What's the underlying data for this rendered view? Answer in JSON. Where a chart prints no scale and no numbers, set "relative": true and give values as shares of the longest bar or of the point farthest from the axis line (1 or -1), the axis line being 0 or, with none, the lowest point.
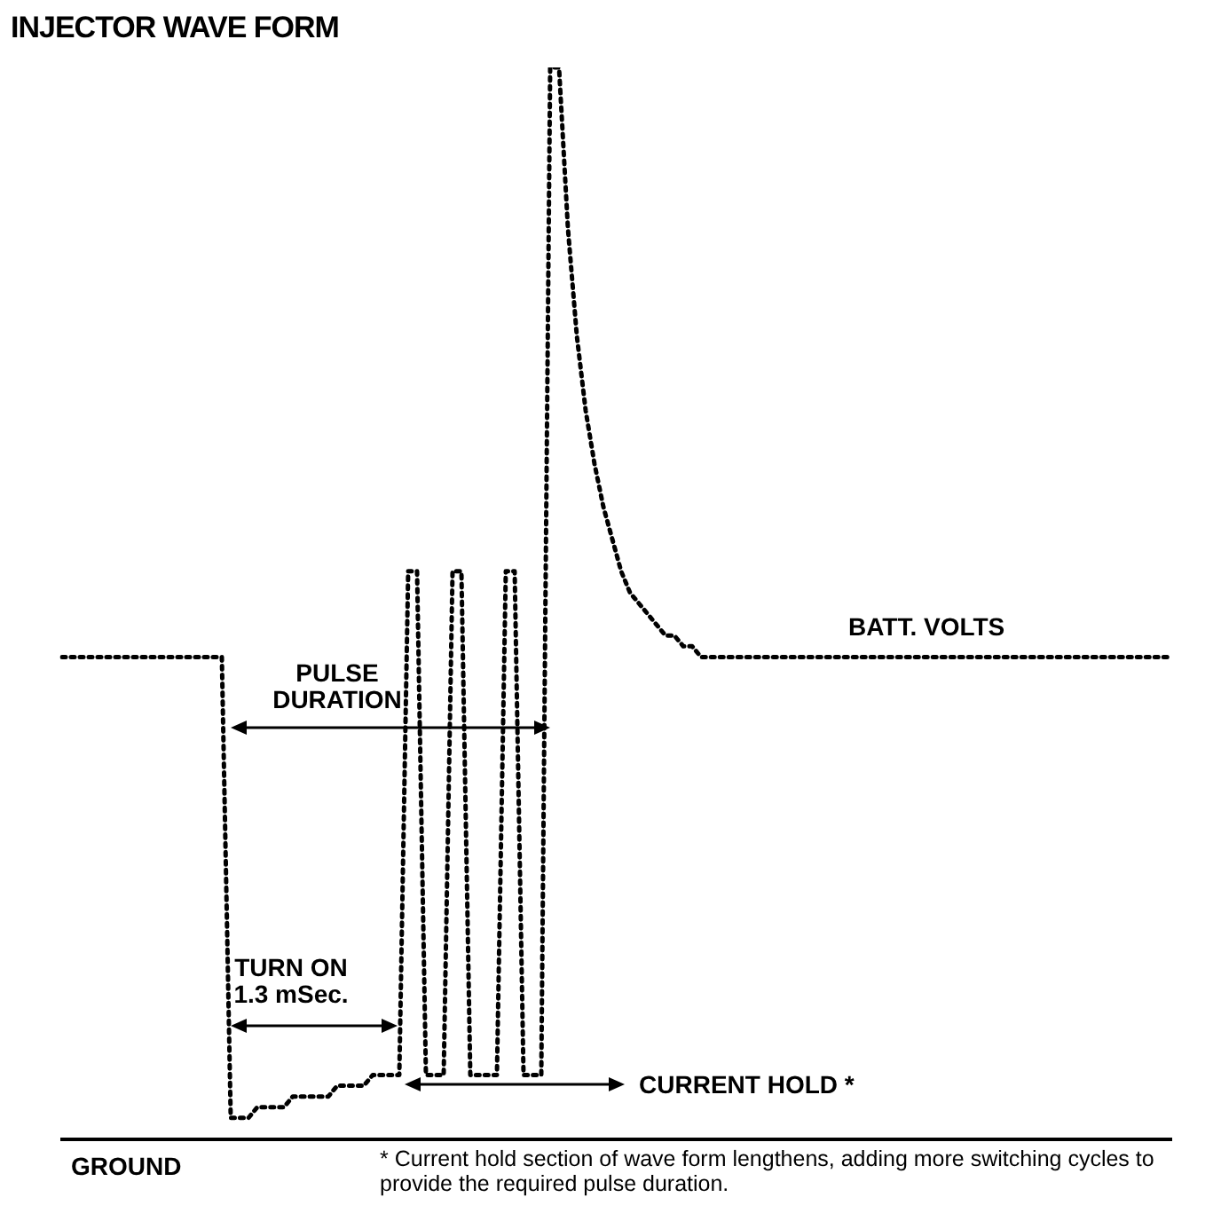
{
  "chart_data": {
    "type": "line",
    "title": "INJECTOR WAVE FORM",
    "relative": true,
    "color": "#000000",
    "line_style": "dotted",
    "marker": "none",
    "grid": false,
    "legend": false,
    "categories": [
      null,
      null,
      null,
      null,
      null,
      null,
      null,
      null,
      null,
      null,
      null,
      null,
      null,
      null,
      null,
      null,
      null,
      null,
      null,
      null,
      null,
      null,
      null,
      null,
      null,
      null,
      null,
      null,
      null,
      null,
      null,
      null,
      null,
      null,
      null,
      null,
      null,
      null,
      null,
      null,
      null,
      null,
      null,
      null,
      null,
      null,
      null,
      null,
      null,
      null,
      null,
      null,
      null,
      null,
      null,
      null,
      null,
      null,
      null,
      null,
      null,
      null,
      null,
      null,
      null,
      null,
      null,
      null,
      null,
      null,
      null,
      null,
      null,
      null,
      null,
      null,
      null,
      null,
      null,
      null,
      null,
      null,
      null,
      null,
      null,
      null,
      null,
      null,
      null,
      null,
      null,
      null,
      null,
      null,
      null,
      null,
      null,
      null,
      null,
      null,
      null,
      null,
      null,
      null,
      null,
      null,
      null,
      null,
      null,
      null,
      null,
      null,
      null,
      null,
      null,
      null,
      null,
      null,
      null,
      null,
      null,
      null,
      null,
      null,
      null,
      null
    ],
    "values": [
      0.45,
      0.45,
      0.45,
      0.45,
      0.45,
      0.45,
      0.45,
      0.45,
      0.45,
      0.45,
      0.45,
      0.45,
      0.45,
      0.45,
      0.45,
      0.45,
      0.45,
      0.45,
      0.45,
      0.02,
      0.02,
      0.02,
      0.03,
      0.03,
      0.03,
      0.03,
      0.04,
      0.04,
      0.04,
      0.04,
      0.04,
      0.05,
      0.05,
      0.05,
      0.05,
      0.06,
      0.06,
      0.06,
      0.06,
      0.53,
      0.53,
      0.06,
      0.06,
      0.06,
      0.53,
      0.53,
      0.06,
      0.06,
      0.06,
      0.06,
      0.53,
      0.53,
      0.06,
      0.06,
      0.06,
      1,
      1,
      0.85,
      0.75,
      0.68,
      0.63,
      0.59,
      0.56,
      0.53,
      0.51,
      0.5,
      0.49,
      0.48,
      0.47,
      0.47,
      0.46,
      0.46,
      0.45,
      0.45,
      0.45,
      0.45,
      0.45,
      0.45,
      0.45,
      0.45,
      0.45,
      0.45,
      0.45,
      0.45,
      0.45,
      0.45,
      0.45,
      0.45,
      0.45,
      0.45,
      0.45,
      0.45,
      0.45,
      0.45,
      0.45,
      0.45,
      0.45,
      0.45,
      0.45,
      0.45,
      0.45,
      0.45,
      0.45,
      0.45,
      0.45,
      0.45,
      0.45,
      0.45,
      0.45,
      0.45,
      0.45,
      0.45,
      0.45,
      0.45,
      0.45,
      0.45,
      0.45,
      0.45,
      0.45,
      0.45,
      0.45,
      0.45,
      0.45,
      0.45,
      0.45,
      0.45
    ],
    "annotations": [
      "BATT. VOLTS",
      "PULSE DURATION",
      "TURN ON 1.3 mSec.",
      "CURRENT HOLD *",
      "GROUND",
      "* Current hold section of wave form lengthens, adding more switching cycles to provide the required pulse duration."
    ]
  }
}
